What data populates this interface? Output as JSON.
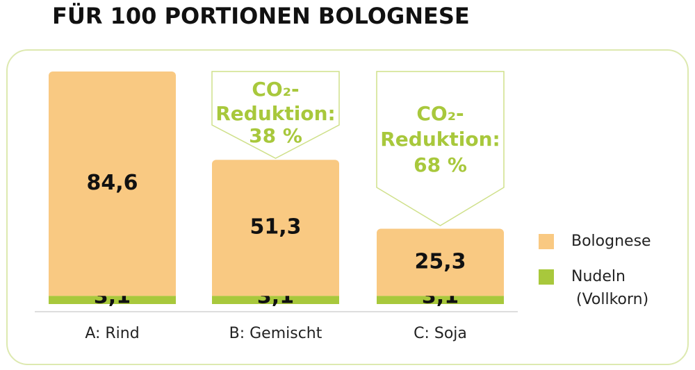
{
  "chart_data": {
    "type": "stacked-bar",
    "title": "FÜR 100 PORTIONEN BOLOGNESE",
    "categories": [
      "A: Rind",
      "B: Gemischt",
      "C: Soja"
    ],
    "series": [
      {
        "name": "Nudeln (Vollkorn)",
        "color": "#a8c83c",
        "values": [
          3.1,
          3.1,
          3.1
        ],
        "value_labels": [
          "3,1",
          "3,1",
          "3,1"
        ]
      },
      {
        "name": "Bolognese",
        "color": "#f9c982",
        "values": [
          84.6,
          51.3,
          25.3
        ],
        "value_labels": [
          "84,6",
          "51,3",
          "25,3"
        ]
      }
    ],
    "annotations": [
      {
        "text": [
          "CO₂-",
          "Reduktion:",
          "38 %"
        ]
      },
      {
        "text": [
          "CO₂-",
          "Reduktion:",
          "68 %"
        ]
      }
    ]
  }
}
